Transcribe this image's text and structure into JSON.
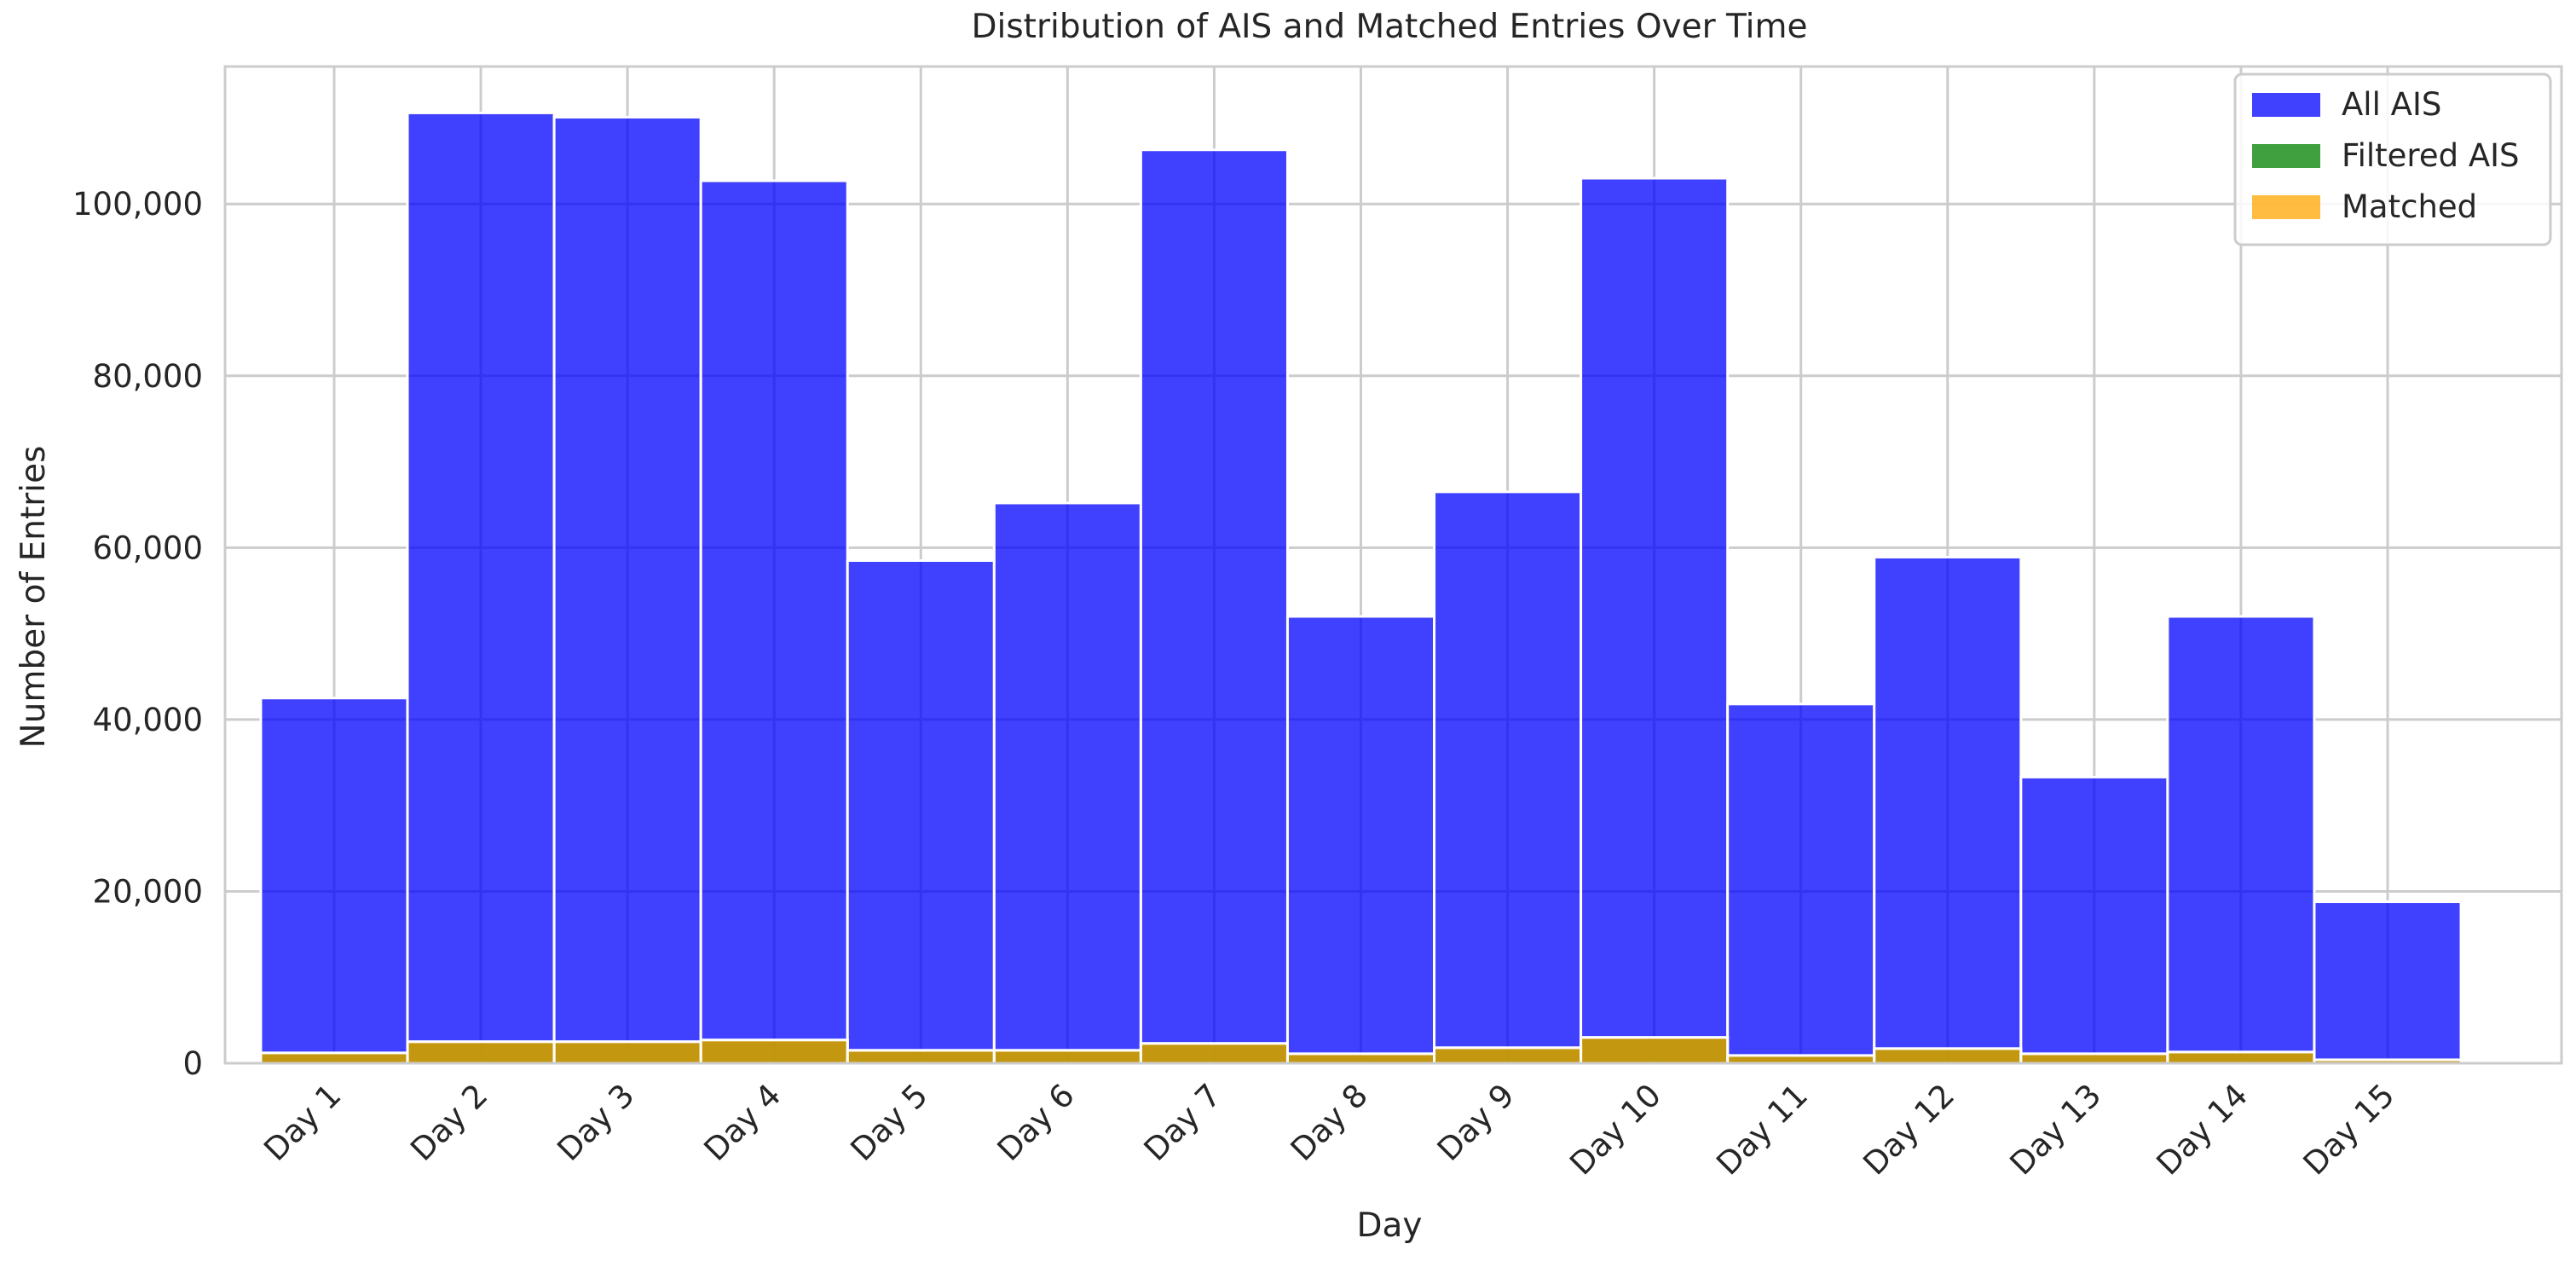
{
  "chart_data": {
    "type": "bar",
    "title": "Distribution of AIS and Matched Entries Over Time",
    "xlabel": "Day",
    "ylabel": "Number of Entries",
    "categories": [
      "Day 1",
      "Day 2",
      "Day 3",
      "Day 4",
      "Day 5",
      "Day 6",
      "Day 7",
      "Day 8",
      "Day 9",
      "Day 10",
      "Day 11",
      "Day 12",
      "Day 13",
      "Day 14",
      "Day 15"
    ],
    "series": [
      {
        "name": "All AIS",
        "color": "#0000ff",
        "values": [
          42500,
          110600,
          110100,
          102700,
          58500,
          65200,
          106300,
          52000,
          66500,
          103000,
          41800,
          58900,
          33300,
          52000,
          18800
        ]
      },
      {
        "name": "Filtered AIS",
        "color": "#008000",
        "values": [
          1200,
          2500,
          2500,
          2700,
          1500,
          1500,
          2300,
          1100,
          1800,
          3000,
          900,
          1700,
          1100,
          1300,
          400
        ]
      },
      {
        "name": "Matched",
        "color": "#ffa500",
        "values": [
          1200,
          2500,
          2500,
          2700,
          1500,
          1500,
          2300,
          1100,
          1800,
          3000,
          900,
          1700,
          1100,
          1300,
          400
        ]
      }
    ],
    "ylim": [
      0,
      116000
    ],
    "yticks": [
      0,
      20000,
      40000,
      60000,
      80000,
      100000
    ],
    "ytick_labels": [
      "0",
      "20,000",
      "40,000",
      "60,000",
      "80,000",
      "100,000"
    ],
    "grid": true,
    "legend_position": "top-right"
  }
}
